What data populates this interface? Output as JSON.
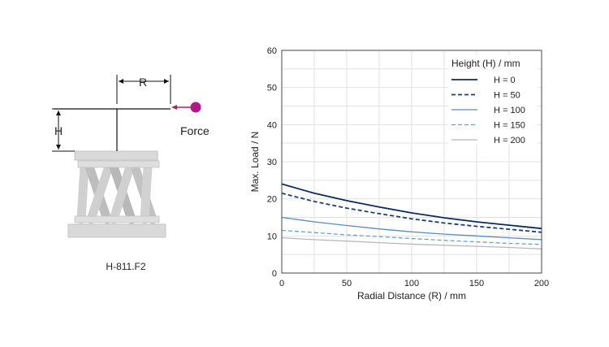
{
  "diagram": {
    "dimension_r": "R",
    "dimension_h": "H",
    "force_label": "Force",
    "caption": "H-811.F2",
    "colors": {
      "force_arrow": "#c2185b",
      "force_dot": "#b5178a",
      "hexapod": "#d4d4d4"
    }
  },
  "chart_data": {
    "type": "line",
    "title": "",
    "xlabel": "Radial Distance (R) / mm",
    "ylabel": "Max. Load / N",
    "xlim": [
      0,
      200
    ],
    "ylim": [
      0,
      60
    ],
    "xticks": [
      0,
      50,
      100,
      150,
      200
    ],
    "yticks": [
      0,
      10,
      20,
      30,
      40,
      50,
      60
    ],
    "grid": true,
    "legend": {
      "title": "Height (H) / mm",
      "position": "top-right"
    },
    "x": [
      0,
      25,
      50,
      75,
      100,
      125,
      150,
      175,
      200
    ],
    "series": [
      {
        "name": "H = 0",
        "color": "#0d2a5c",
        "dash": "solid",
        "values": [
          24.0,
          21.5,
          19.5,
          17.8,
          16.2,
          14.9,
          13.8,
          12.9,
          12.0
        ]
      },
      {
        "name": "H = 50",
        "color": "#1f3f73",
        "dash": "dashed",
        "values": [
          21.5,
          19.3,
          17.5,
          16.0,
          14.6,
          13.5,
          12.6,
          11.8,
          11.0
        ]
      },
      {
        "name": "H = 100",
        "color": "#5b8db8",
        "dash": "solid",
        "values": [
          15.0,
          13.8,
          12.8,
          11.9,
          11.1,
          10.5,
          10.0,
          9.5,
          9.0
        ]
      },
      {
        "name": "H = 150",
        "color": "#6f9fc8",
        "dash": "dashed",
        "values": [
          11.5,
          10.9,
          10.3,
          9.8,
          9.3,
          8.8,
          8.4,
          8.0,
          7.7
        ]
      },
      {
        "name": "H = 200",
        "color": "#b8b8b8",
        "dash": "solid",
        "values": [
          9.5,
          9.0,
          8.6,
          8.2,
          7.8,
          7.5,
          7.2,
          6.9,
          6.5
        ]
      }
    ]
  }
}
